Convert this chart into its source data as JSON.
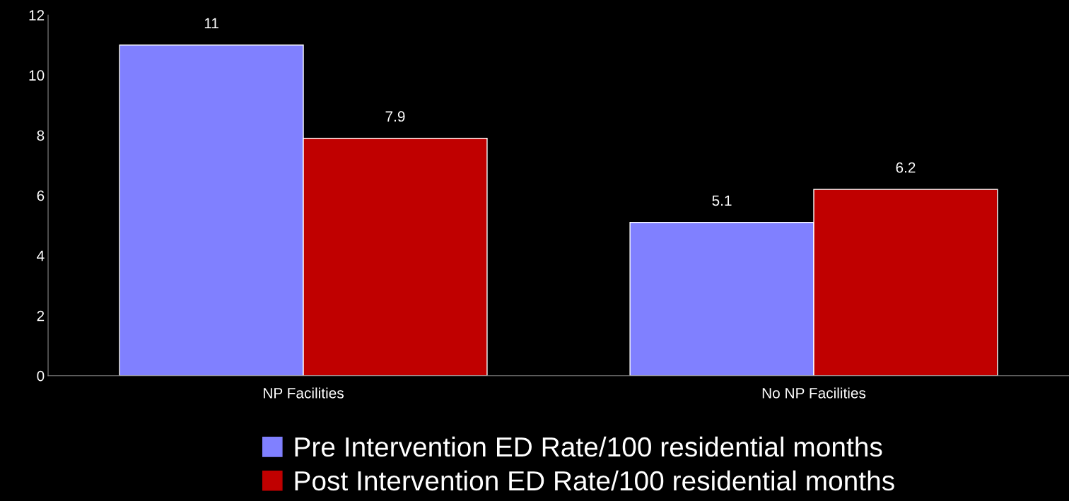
{
  "chart_data": {
    "type": "bar",
    "categories": [
      "NP Facilities",
      "No NP Facilities"
    ],
    "series": [
      {
        "name": "Pre Intervention ED Rate/100 residential months",
        "color": "#8080ff",
        "values": [
          11,
          5.1
        ]
      },
      {
        "name": "Post Intervention ED Rate/100 residential months",
        "color": "#c00000",
        "values": [
          7.9,
          6.2
        ]
      }
    ],
    "ylim": [
      0,
      12
    ],
    "yticks": [
      0,
      2,
      4,
      6,
      8,
      10,
      12
    ],
    "data_labels": true,
    "grid": false,
    "legend": "bottom"
  }
}
